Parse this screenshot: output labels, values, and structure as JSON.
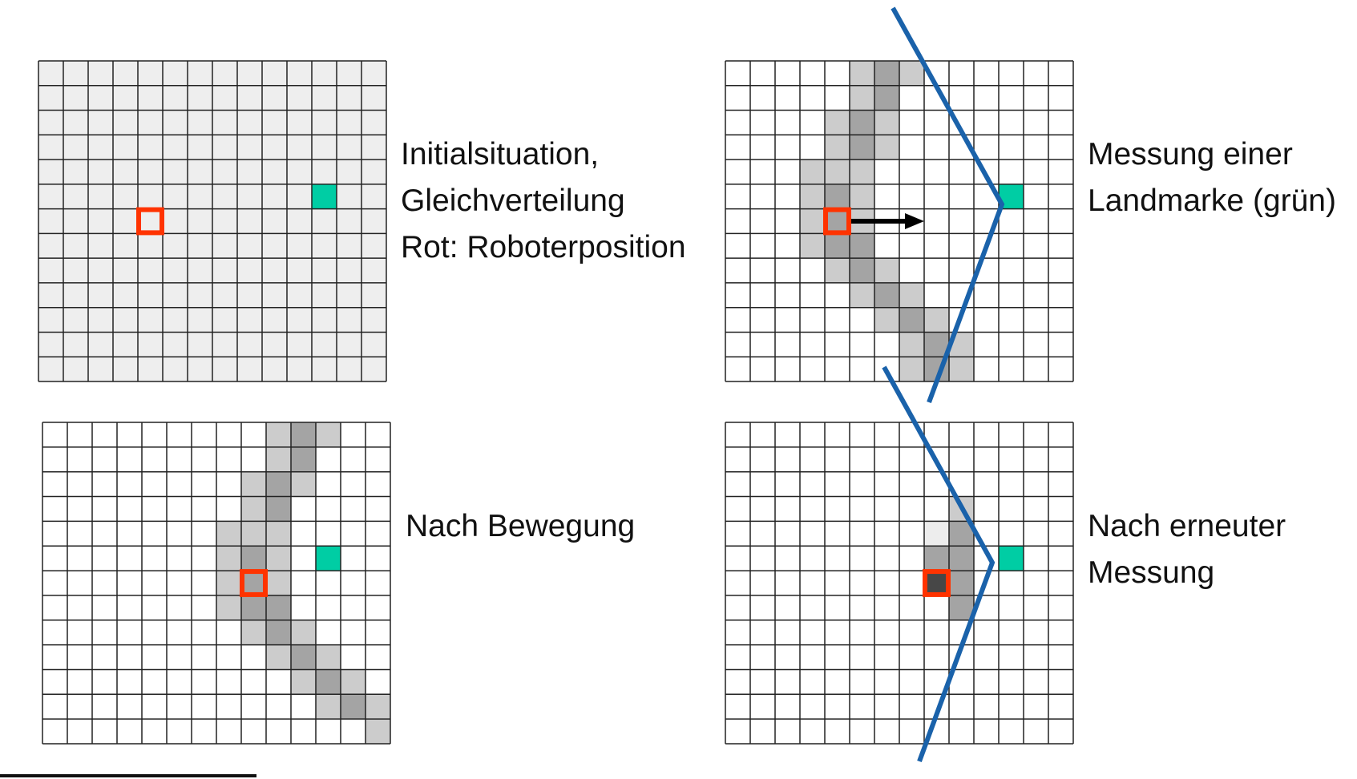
{
  "colors": {
    "grid_line": "#222222",
    "uniform": "#eeeeee",
    "empty": "#ffffff",
    "light": "#cccccc",
    "medium": "#a4a4a4",
    "dark": "#474747",
    "faint": "#ededed",
    "robot": "#ff3300",
    "landmark": "#00cda4",
    "sensor_line": "#1a62aa",
    "arrow": "#000000"
  },
  "panels": [
    {
      "id": "initial",
      "caption": [
        "Initialsituation,",
        "Gleichverteilung",
        "Rot: Roboterposition"
      ],
      "rows": 13,
      "cols": 14,
      "background": "uniform",
      "shaded": [],
      "robot": [
        6,
        4
      ],
      "landmark": [
        5,
        11
      ],
      "arrow": false
    },
    {
      "id": "measurement",
      "caption": [
        "Messung einer",
        "Landmarke (grün)"
      ],
      "rows": 13,
      "cols": 14,
      "background": "empty",
      "shaded": [
        [
          0,
          5,
          "light"
        ],
        [
          0,
          6,
          "medium"
        ],
        [
          0,
          7,
          "light"
        ],
        [
          1,
          5,
          "light"
        ],
        [
          1,
          6,
          "medium"
        ],
        [
          2,
          4,
          "light"
        ],
        [
          2,
          5,
          "medium"
        ],
        [
          2,
          6,
          "light"
        ],
        [
          3,
          4,
          "light"
        ],
        [
          3,
          5,
          "medium"
        ],
        [
          3,
          6,
          "light"
        ],
        [
          4,
          3,
          "light"
        ],
        [
          4,
          4,
          "light"
        ],
        [
          4,
          5,
          "light"
        ],
        [
          5,
          3,
          "light"
        ],
        [
          5,
          4,
          "medium"
        ],
        [
          5,
          5,
          "light"
        ],
        [
          6,
          3,
          "light"
        ],
        [
          6,
          4,
          "medium"
        ],
        [
          6,
          5,
          "light"
        ],
        [
          7,
          3,
          "light"
        ],
        [
          7,
          4,
          "medium"
        ],
        [
          7,
          5,
          "medium"
        ],
        [
          8,
          4,
          "light"
        ],
        [
          8,
          5,
          "medium"
        ],
        [
          8,
          6,
          "light"
        ],
        [
          9,
          5,
          "light"
        ],
        [
          9,
          6,
          "medium"
        ],
        [
          9,
          7,
          "light"
        ],
        [
          10,
          6,
          "light"
        ],
        [
          10,
          7,
          "medium"
        ],
        [
          10,
          8,
          "light"
        ],
        [
          11,
          7,
          "light"
        ],
        [
          11,
          8,
          "medium"
        ],
        [
          11,
          9,
          "light"
        ],
        [
          12,
          7,
          "light"
        ],
        [
          12,
          8,
          "medium"
        ],
        [
          12,
          9,
          "light"
        ]
      ],
      "robot": [
        6,
        4
      ],
      "landmark": [
        5,
        11
      ],
      "arrow": true
    },
    {
      "id": "after-motion",
      "caption": [
        "Nach Bewegung"
      ],
      "rows": 13,
      "cols": 14,
      "background": "empty",
      "shaded": [
        [
          0,
          9,
          "light"
        ],
        [
          0,
          10,
          "medium"
        ],
        [
          0,
          11,
          "light"
        ],
        [
          1,
          9,
          "light"
        ],
        [
          1,
          10,
          "medium"
        ],
        [
          2,
          8,
          "light"
        ],
        [
          2,
          9,
          "medium"
        ],
        [
          2,
          10,
          "light"
        ],
        [
          3,
          8,
          "light"
        ],
        [
          3,
          9,
          "medium"
        ],
        [
          4,
          7,
          "light"
        ],
        [
          4,
          8,
          "light"
        ],
        [
          4,
          9,
          "light"
        ],
        [
          5,
          7,
          "light"
        ],
        [
          5,
          8,
          "medium"
        ],
        [
          5,
          9,
          "light"
        ],
        [
          6,
          7,
          "light"
        ],
        [
          6,
          8,
          "medium"
        ],
        [
          6,
          9,
          "light"
        ],
        [
          7,
          7,
          "light"
        ],
        [
          7,
          8,
          "medium"
        ],
        [
          7,
          9,
          "medium"
        ],
        [
          8,
          8,
          "light"
        ],
        [
          8,
          9,
          "medium"
        ],
        [
          8,
          10,
          "light"
        ],
        [
          9,
          9,
          "light"
        ],
        [
          9,
          10,
          "medium"
        ],
        [
          9,
          11,
          "light"
        ],
        [
          10,
          10,
          "light"
        ],
        [
          10,
          11,
          "medium"
        ],
        [
          10,
          12,
          "light"
        ],
        [
          11,
          11,
          "light"
        ],
        [
          11,
          12,
          "medium"
        ],
        [
          11,
          13,
          "light"
        ],
        [
          12,
          13,
          "light"
        ]
      ],
      "robot": [
        6,
        8
      ],
      "landmark": [
        5,
        11
      ],
      "arrow": false
    },
    {
      "id": "re-measurement",
      "caption": [
        "Nach erneuter",
        "Messung"
      ],
      "rows": 13,
      "cols": 14,
      "background": "empty",
      "shaded": [
        [
          3,
          9,
          "light"
        ],
        [
          4,
          8,
          "faint"
        ],
        [
          4,
          9,
          "medium"
        ],
        [
          5,
          8,
          "medium"
        ],
        [
          5,
          9,
          "medium"
        ],
        [
          6,
          8,
          "dark"
        ],
        [
          6,
          9,
          "medium"
        ],
        [
          7,
          9,
          "medium"
        ]
      ],
      "robot": [
        6,
        8
      ],
      "landmark": [
        5,
        11
      ],
      "arrow": false
    }
  ]
}
